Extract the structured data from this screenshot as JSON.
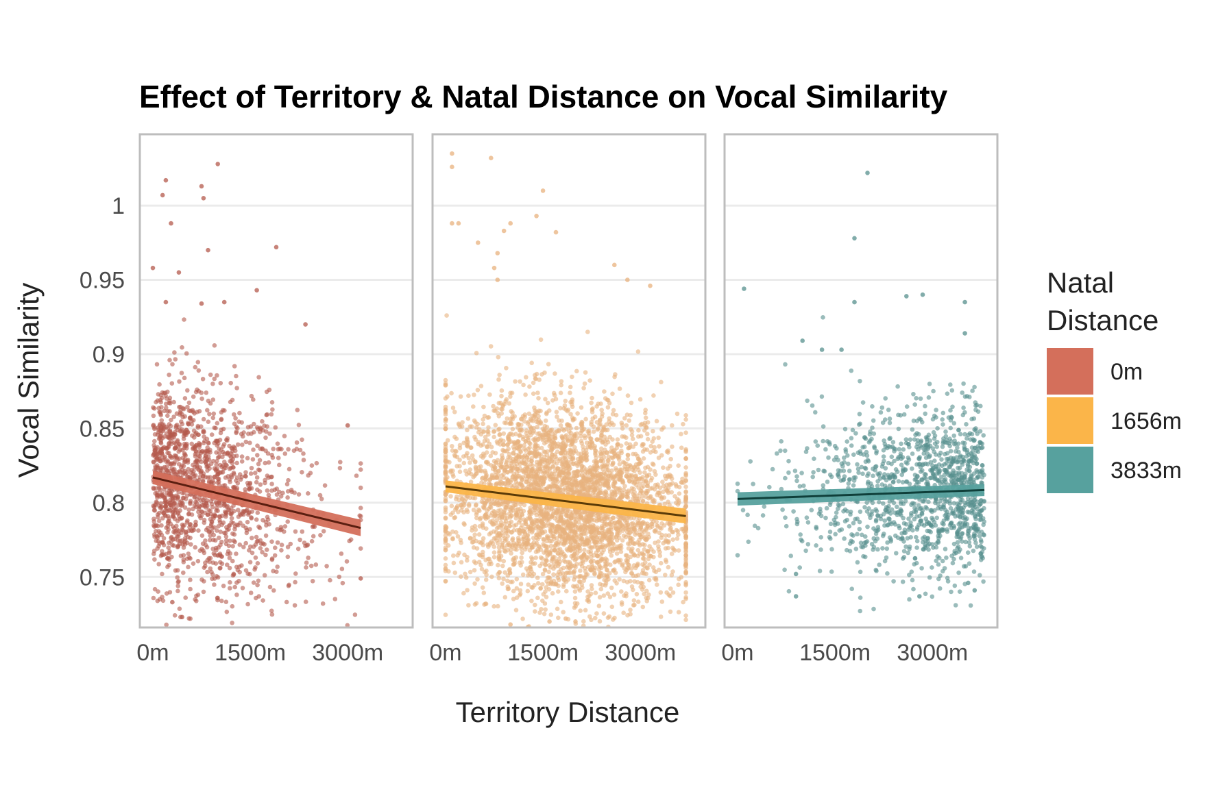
{
  "chart_data": {
    "type": "scatter",
    "title": "Effect of Territory & Natal Distance on Vocal Similarity",
    "xlabel": "Territory Distance",
    "ylabel": "Vocal Similarity",
    "y_ticks": [
      "0.75",
      "0.8",
      "0.85",
      "0.9",
      "0.95",
      "1"
    ],
    "y_tick_values": [
      0.75,
      0.8,
      0.85,
      0.9,
      0.95,
      1.0
    ],
    "x_ticks": [
      "0m",
      "1500m",
      "3000m"
    ],
    "x_tick_values": [
      0,
      1500,
      3000
    ],
    "ylim": [
      0.716,
      1.048
    ],
    "xlim": [
      -200,
      4000
    ],
    "grid": true,
    "legend": {
      "title": "Natal Distance",
      "title_lines": [
        "Natal",
        "Distance"
      ],
      "placement": "right",
      "items": [
        {
          "label": "0m",
          "color": "#d46f5b"
        },
        {
          "label": "1656m",
          "color": "#fbb549"
        },
        {
          "label": "3833m",
          "color": "#57a19e"
        }
      ]
    },
    "panels": [
      {
        "name": "0m",
        "point_color": "#b45a4c",
        "band_color": "#d46f5b",
        "line_color": "#5a1e10",
        "fit": {
          "x": [
            0,
            3200
          ],
          "y": [
            0.817,
            0.783
          ],
          "se_y": [
            0.0045,
            0.0055
          ]
        },
        "n_points": 1500,
        "x_range": [
          0,
          3200
        ],
        "y_center": 0.805,
        "y_spread": 0.04,
        "outliers": [
          [
            150,
            1.007
          ],
          [
            200,
            1.017
          ],
          [
            750,
            1.013
          ],
          [
            1000,
            1.028
          ],
          [
            780,
            1.005
          ],
          [
            280,
            0.988
          ],
          [
            850,
            0.97
          ],
          [
            1900,
            0.972
          ],
          [
            0,
            0.958
          ],
          [
            400,
            0.955
          ],
          [
            1600,
            0.943
          ],
          [
            200,
            0.935
          ],
          [
            750,
            0.934
          ],
          [
            1100,
            0.935
          ],
          [
            2350,
            0.92
          ],
          [
            3000,
            0.852
          ],
          [
            3200,
            0.749
          ],
          [
            450,
            0.723
          ],
          [
            300,
            0.733
          ]
        ]
      },
      {
        "name": "1656m",
        "point_color": "#e8b27e",
        "band_color": "#fbb549",
        "line_color": "#5a3b08",
        "fit": {
          "x": [
            0,
            3700
          ],
          "y": [
            0.811,
            0.791
          ],
          "se_y": [
            0.004,
            0.005
          ]
        },
        "n_points": 4000,
        "x_range": [
          0,
          3700
        ],
        "y_center": 0.8,
        "y_spread": 0.038,
        "outliers": [
          [
            100,
            1.035
          ],
          [
            100,
            1.026
          ],
          [
            700,
            1.032
          ],
          [
            1500,
            1.01
          ],
          [
            1400,
            0.993
          ],
          [
            100,
            0.988
          ],
          [
            200,
            0.988
          ],
          [
            1000,
            0.988
          ],
          [
            900,
            0.983
          ],
          [
            1700,
            0.982
          ],
          [
            500,
            0.975
          ],
          [
            800,
            0.968
          ],
          [
            750,
            0.958
          ],
          [
            2600,
            0.96
          ],
          [
            3150,
            0.946
          ],
          [
            800,
            0.95
          ],
          [
            2800,
            0.95
          ],
          [
            1600,
            0.72
          ],
          [
            1850,
            0.722
          ],
          [
            2000,
            0.72
          ],
          [
            1000,
            0.718
          ]
        ]
      },
      {
        "name": "3833m",
        "point_color": "#57908e",
        "band_color": "#57a19e",
        "line_color": "#0f3f3a",
        "fit": {
          "x": [
            0,
            3800
          ],
          "y": [
            0.8025,
            0.8085
          ],
          "se_y": [
            0.0045,
            0.004
          ]
        },
        "n_points": 1300,
        "x_range": [
          0,
          3800
        ],
        "y_center": 0.805,
        "y_spread": 0.033,
        "outliers": [
          [
            2000,
            1.022
          ],
          [
            1800,
            0.978
          ],
          [
            100,
            0.944
          ],
          [
            2600,
            0.939
          ],
          [
            2850,
            0.94
          ],
          [
            1800,
            0.935
          ],
          [
            3500,
            0.935
          ],
          [
            1000,
            0.909
          ],
          [
            1300,
            0.903
          ],
          [
            1600,
            0.903
          ],
          [
            3500,
            0.914
          ],
          [
            900,
            0.752
          ],
          [
            900,
            0.737
          ],
          [
            2800,
            0.737
          ],
          [
            3650,
            0.741
          ],
          [
            3550,
            0.746
          ]
        ]
      }
    ]
  }
}
